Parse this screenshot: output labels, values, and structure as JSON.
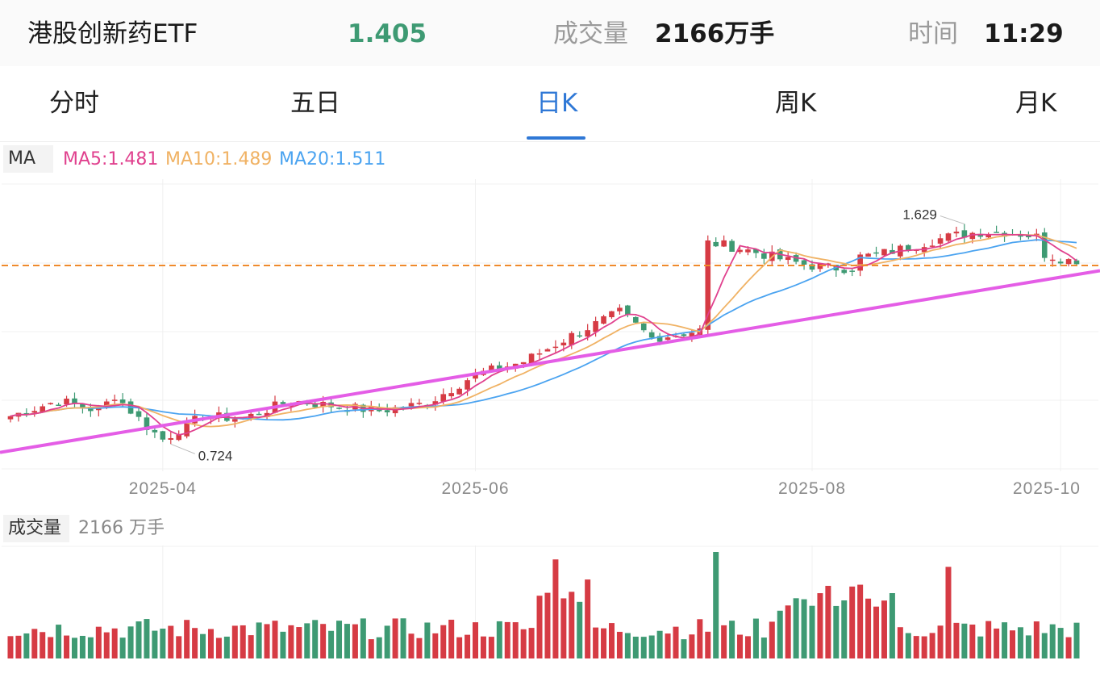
{
  "header": {
    "fund_name": "港股创新药ETF",
    "price": "1.405",
    "volume_label": "成交量",
    "volume_value": "2166万手",
    "time_label": "时间",
    "time_value": "11:29"
  },
  "tabs": [
    {
      "label": "分时",
      "active": false
    },
    {
      "label": "五日",
      "active": false
    },
    {
      "label": "日K",
      "active": true
    },
    {
      "label": "周K",
      "active": false
    },
    {
      "label": "月K",
      "active": false
    }
  ],
  "ma_bar": {
    "label": "MA",
    "ma5": "MA5:1.481",
    "ma10": "MA10:1.489",
    "ma20": "MA20:1.511"
  },
  "volume_bar": {
    "label": "成交量",
    "value": "2166 万手"
  },
  "colors": {
    "up": "#d63b44",
    "down": "#3e9a73",
    "ma5": "#e0418e",
    "ma10": "#f0b264",
    "ma20": "#4aa3f0",
    "trendline": "#e45de6",
    "dashed_level": "#ef8a2c",
    "active_tab": "#2f78d6"
  },
  "chart_data": [
    {
      "type": "candlestick",
      "x_tick_labels": [
        "2025-04",
        "2025-06",
        "2025-08",
        "2025-10"
      ],
      "annotations": [
        {
          "text": "1.629",
          "kind": "high"
        },
        {
          "text": "0.724",
          "kind": "low"
        }
      ],
      "grid": true,
      "dashed_level": 1.4,
      "trendline": {
        "start": 0.68,
        "end": 1.38
      },
      "candle_count": 134
    },
    {
      "type": "bar",
      "name": "成交量",
      "bar_count": 134
    }
  ]
}
